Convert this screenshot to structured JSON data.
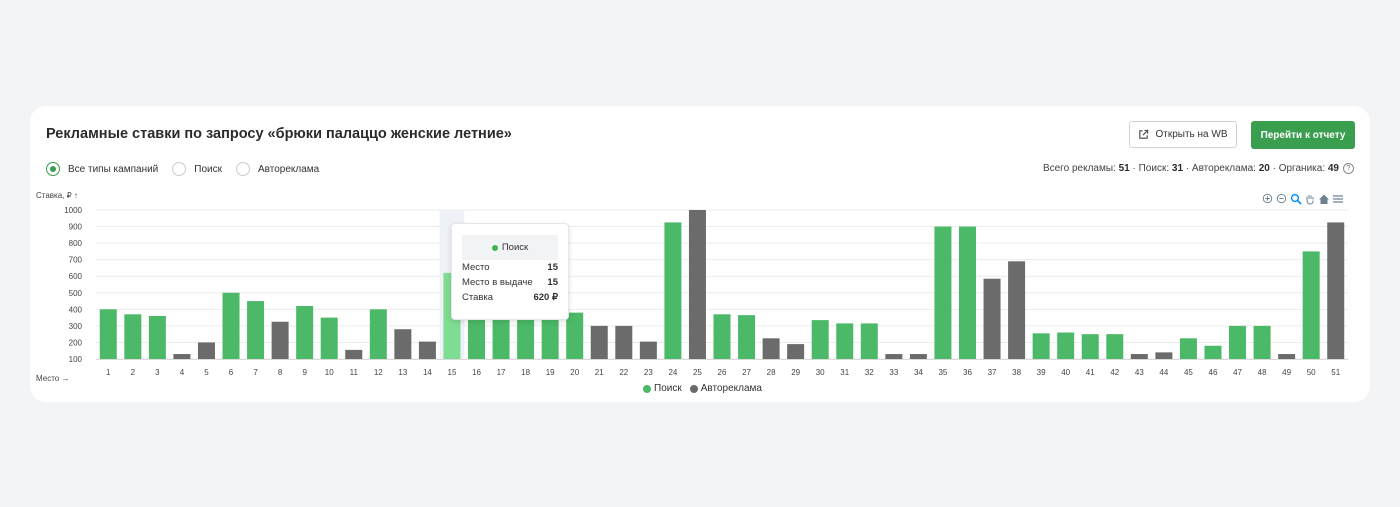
{
  "header": {
    "title": "Рекламные ставки по запросу «брюки палаццо женские летние»",
    "open_wb_label": "Открыть на WB",
    "report_label": "Перейти к отчету"
  },
  "filters": [
    {
      "label": "Все типы кампаний",
      "checked": true
    },
    {
      "label": "Поиск",
      "checked": false
    },
    {
      "label": "Автореклама",
      "checked": false
    }
  ],
  "summary": {
    "total_label": "Всего рекламы:",
    "total": "51",
    "search_label": "Поиск:",
    "search": "31",
    "auto_label": "Автореклама:",
    "auto": "20",
    "organic_label": "Органика:",
    "organic": "49"
  },
  "colors": {
    "search": "#4cb968",
    "search_highlight": "#7fdc93",
    "auto": "#6b6b6b",
    "accent": "#3a9e4f"
  },
  "tooltip": {
    "series": "Поиск",
    "rows": [
      {
        "label": "Место",
        "value": "15"
      },
      {
        "label": "Место в выдаче",
        "value": "15"
      },
      {
        "label": "Ставка",
        "value": "620 ₽"
      }
    ]
  },
  "toolbar_icons": [
    "zoom-in-icon",
    "zoom-out-icon",
    "magnifier-icon",
    "pan-hand-icon",
    "home-icon",
    "menu-icon"
  ],
  "chart_data": {
    "type": "bar",
    "ylabel": "Ставка, ₽ ↑",
    "xlabel": "Место →",
    "ylim": [
      100,
      1000
    ],
    "yticks": [
      100,
      200,
      300,
      400,
      500,
      600,
      700,
      800,
      900,
      1000
    ],
    "categories": [
      "1",
      "2",
      "3",
      "4",
      "5",
      "6",
      "7",
      "8",
      "9",
      "10",
      "11",
      "12",
      "13",
      "14",
      "15",
      "16",
      "17",
      "18",
      "19",
      "20",
      "21",
      "22",
      "23",
      "24",
      "25",
      "26",
      "27",
      "28",
      "29",
      "30",
      "31",
      "32",
      "33",
      "34",
      "35",
      "36",
      "37",
      "38",
      "39",
      "40",
      "41",
      "42",
      "43",
      "44",
      "45",
      "46",
      "47",
      "48",
      "49",
      "50",
      "51"
    ],
    "values": [
      400,
      370,
      360,
      130,
      200,
      500,
      450,
      325,
      420,
      350,
      155,
      400,
      280,
      205,
      620,
      380,
      380,
      380,
      380,
      380,
      300,
      300,
      205,
      925,
      1000,
      370,
      365,
      225,
      190,
      335,
      315,
      315,
      130,
      130,
      900,
      900,
      585,
      690,
      255,
      260,
      250,
      250,
      130,
      140,
      225,
      180,
      300,
      300,
      130,
      750,
      925
    ],
    "series_type": [
      "search",
      "search",
      "search",
      "auto",
      "auto",
      "search",
      "search",
      "auto",
      "search",
      "search",
      "auto",
      "search",
      "auto",
      "auto",
      "search",
      "search",
      "search",
      "search",
      "search",
      "search",
      "auto",
      "auto",
      "auto",
      "search",
      "auto",
      "search",
      "search",
      "auto",
      "auto",
      "search",
      "search",
      "search",
      "auto",
      "auto",
      "search",
      "search",
      "auto",
      "auto",
      "search",
      "search",
      "search",
      "search",
      "auto",
      "auto",
      "search",
      "search",
      "search",
      "search",
      "auto",
      "search",
      "auto"
    ],
    "highlight_index": 14,
    "legend": [
      {
        "name": "Поиск",
        "key": "search"
      },
      {
        "name": "Автореклама",
        "key": "auto"
      }
    ],
    "legend_position": "bottom-center",
    "grid": true
  }
}
